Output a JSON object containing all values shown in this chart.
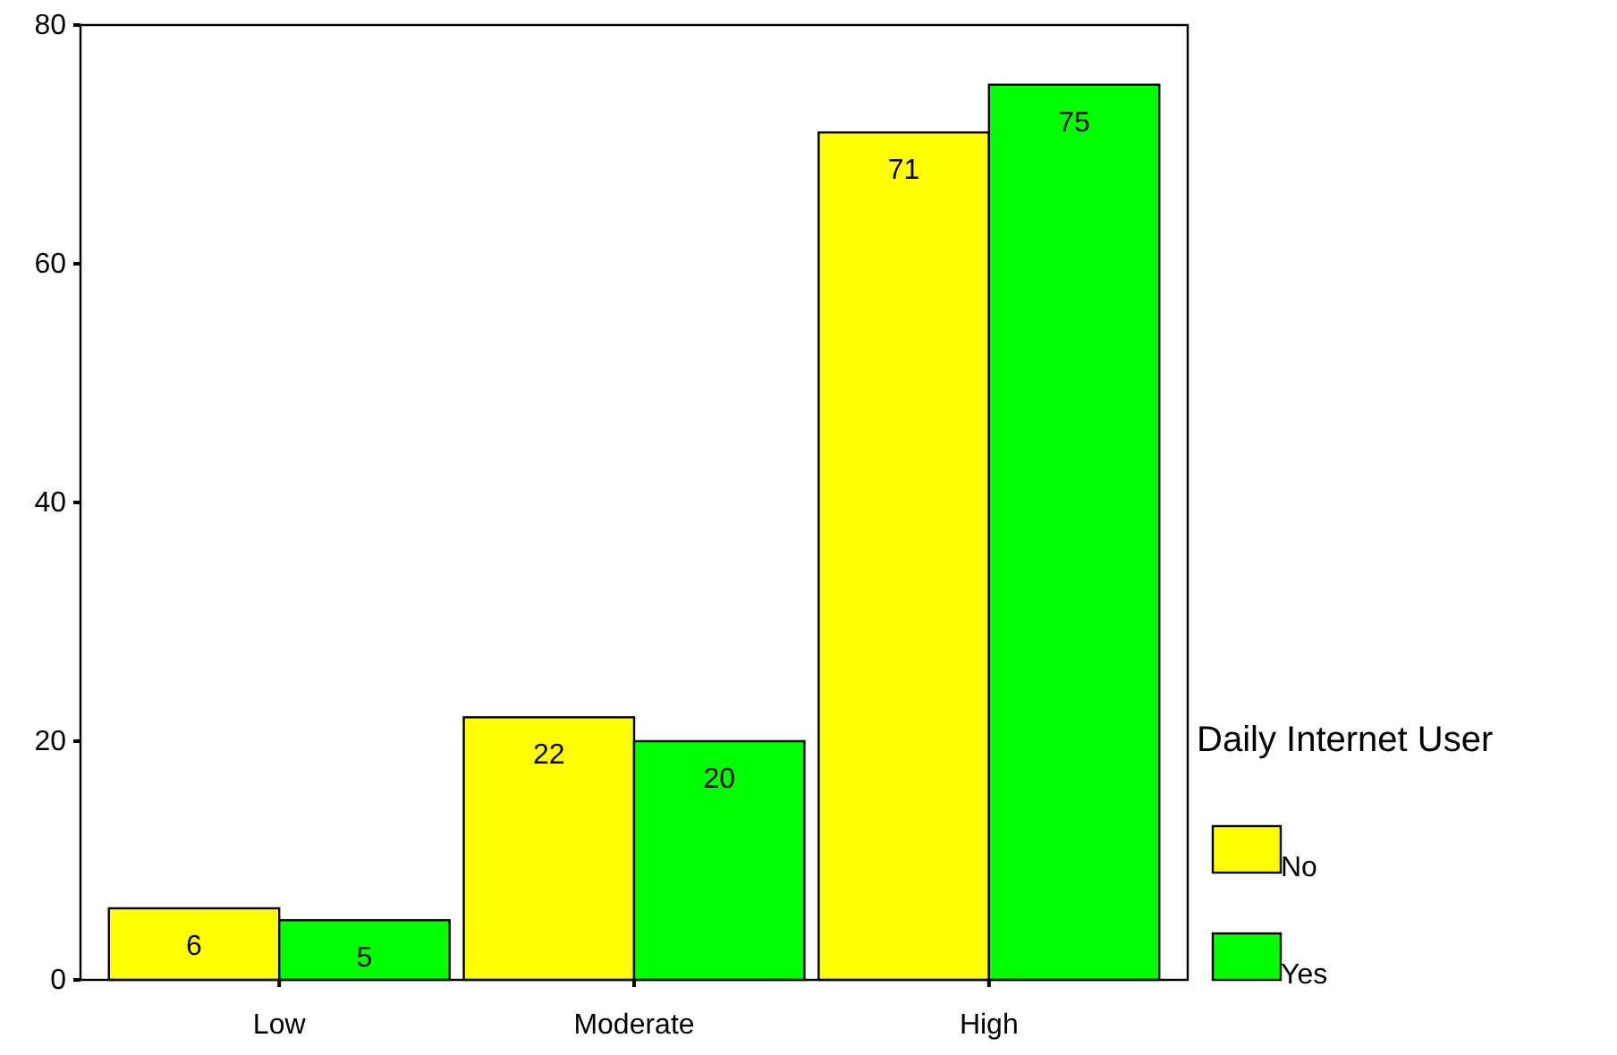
{
  "chart_data": {
    "type": "bar",
    "categories": [
      "Low",
      "Moderate",
      "High"
    ],
    "series": [
      {
        "name": "No",
        "color": "#ffff00",
        "values": [
          6,
          22,
          71
        ]
      },
      {
        "name": "Yes",
        "color": "#00ff00",
        "values": [
          5,
          20,
          75
        ]
      }
    ],
    "ylim": [
      0,
      80
    ],
    "yticks": [
      0,
      20,
      40,
      60,
      80
    ],
    "grid": false,
    "legend": "right",
    "legend_title": "Daily Internet User",
    "data_labels": true
  }
}
